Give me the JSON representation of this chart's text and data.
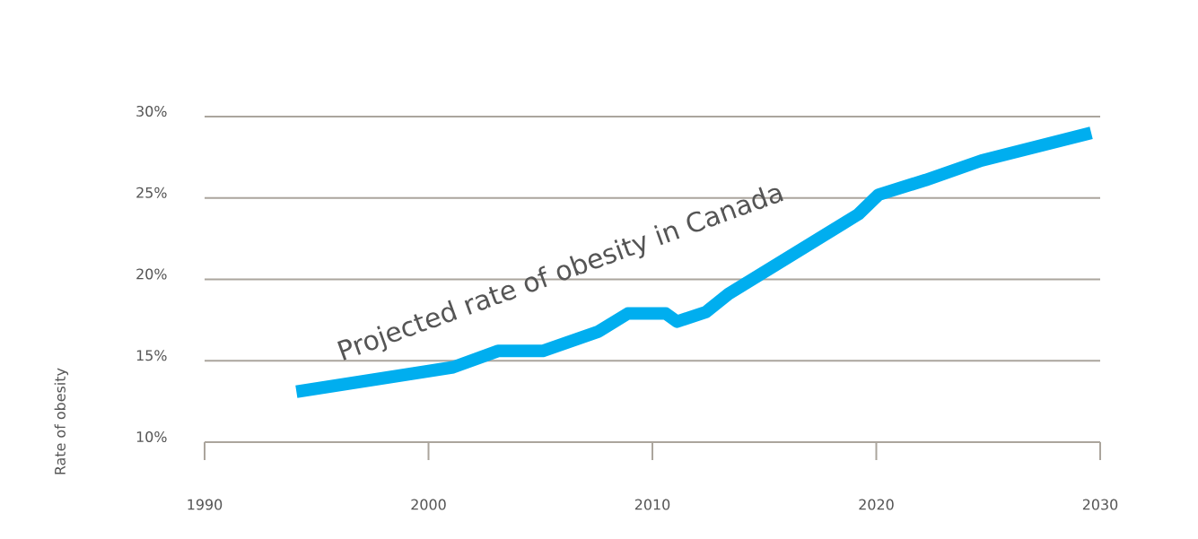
{
  "chart_data": {
    "type": "line",
    "title": "Projected rate of obesity in Canada",
    "ylabel": "Rate of obesity",
    "x": [
      1994.1,
      2001.1,
      2003.1,
      2005.1,
      2007.6,
      2008.9,
      2010.6,
      2011.1,
      2012.4,
      2013.4,
      2019.2,
      2020.1,
      2022.2,
      2024.7,
      2029.6
    ],
    "series": [
      {
        "color": "#00aeef",
        "values": [
          13.1,
          14.6,
          15.6,
          15.6,
          16.8,
          17.9,
          17.9,
          17.4,
          18.0,
          19.1,
          24.0,
          25.2,
          26.1,
          27.3,
          29.0
        ]
      }
    ],
    "xlim": [
      1990,
      2030
    ],
    "xticks": [
      1990,
      2000,
      2010,
      2020,
      2030
    ],
    "ylim": [
      10,
      30
    ],
    "yticks": [
      {
        "value": 10,
        "label": "10%"
      },
      {
        "value": 15,
        "label": "15%"
      },
      {
        "value": 20,
        "label": "20%"
      },
      {
        "value": 25,
        "label": "25%"
      },
      {
        "value": 30,
        "label": "30%"
      }
    ],
    "grid": "y",
    "line_style": "solid"
  }
}
